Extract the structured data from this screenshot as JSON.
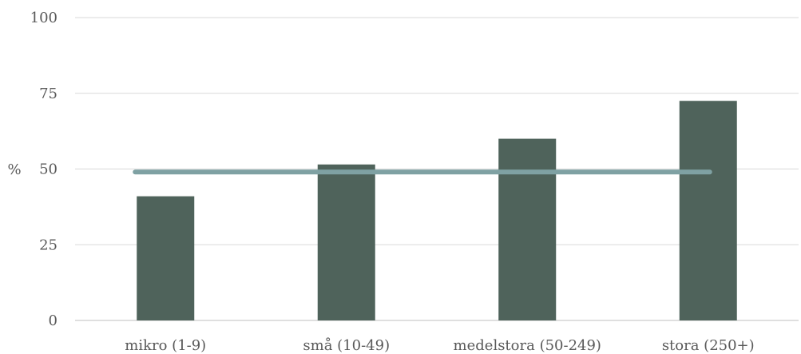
{
  "chart_data": {
    "type": "bar",
    "ylabel": "%",
    "ylim": [
      0,
      100
    ],
    "yticks": [
      0,
      25,
      50,
      75,
      100
    ],
    "grid": true,
    "categories": [
      "mikro (1-9)",
      "små (10-49)",
      "medelstora (50-249)",
      "stora (250+)"
    ],
    "series": [
      {
        "type": "bar",
        "values": [
          41,
          51.5,
          60,
          72.5
        ],
        "color": "#4f635b"
      },
      {
        "type": "line",
        "values": [
          49,
          49,
          49,
          49
        ],
        "color": "#7fa1a3"
      }
    ]
  }
}
